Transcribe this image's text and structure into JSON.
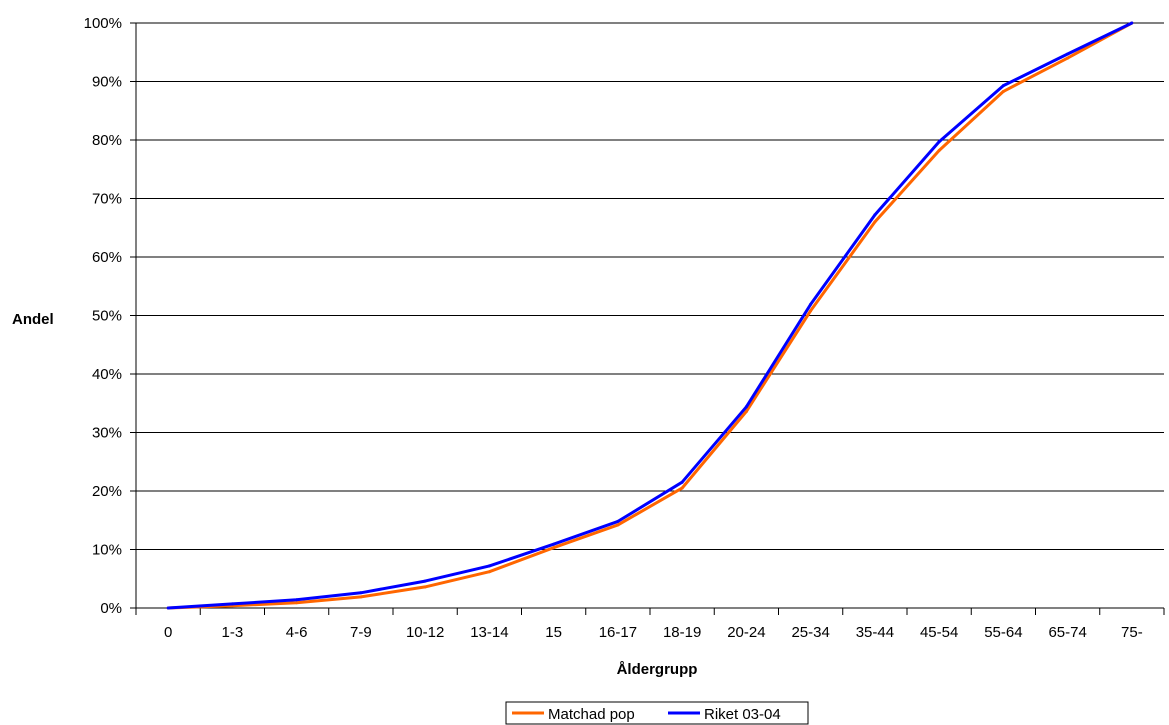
{
  "chart_data": {
    "type": "line",
    "xlabel": "Åldergrupp",
    "ylabel": "Andel",
    "categories": [
      "0",
      "1-3",
      "4-6",
      "7-9",
      "10-12",
      "13-14",
      "15",
      "16-17",
      "18-19",
      "20-24",
      "25-34",
      "35-44",
      "45-54",
      "55-64",
      "65-74",
      "75-"
    ],
    "ylim": [
      0,
      1
    ],
    "yticks": [
      "0%",
      "10%",
      "20%",
      "30%",
      "40%",
      "50%",
      "60%",
      "70%",
      "80%",
      "90%",
      "100%"
    ],
    "grid": "horizontal",
    "legend_position": "bottom",
    "series": [
      {
        "name": "Matchad pop",
        "color": "#ff6600",
        "values": [
          0.0,
          0.004,
          0.009,
          0.019,
          0.036,
          0.062,
          0.103,
          0.142,
          0.205,
          0.336,
          0.508,
          0.66,
          0.782,
          0.883,
          0.94,
          1.0
        ]
      },
      {
        "name": "Riket 03-04",
        "color": "#0000ff",
        "values": [
          0.0,
          0.007,
          0.014,
          0.026,
          0.046,
          0.072,
          0.109,
          0.148,
          0.215,
          0.344,
          0.519,
          0.672,
          0.797,
          0.893,
          0.947,
          1.0
        ]
      }
    ]
  }
}
